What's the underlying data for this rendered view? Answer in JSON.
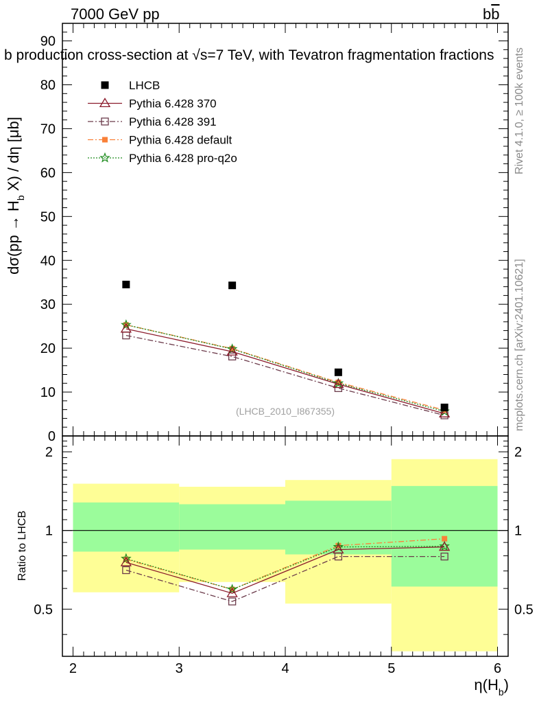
{
  "header": {
    "left": "7000 GeV pp",
    "right_main": "b",
    "right_bar": "b"
  },
  "side_labels": {
    "rivet": "Rivet 4.1.0, ≥ 100k events",
    "mcplots": "mcplots.cern.ch [arXiv:2401.10621]"
  },
  "title": "b production cross-section at √s=7 TeV, with Tevatron fragmentation fractions",
  "watermark": "(LHCB_2010_I867355)",
  "legend": [
    {
      "key": "lhcb",
      "label": "LHCB"
    },
    {
      "key": "p370",
      "label": "Pythia 6.428 370"
    },
    {
      "key": "p391",
      "label": "Pythia 6.428 391"
    },
    {
      "key": "pdef",
      "label": "Pythia 6.428 default"
    },
    {
      "key": "pq2o",
      "label": "Pythia 6.428 pro-q2o"
    }
  ],
  "colors": {
    "lhcb": "#000000",
    "p370": "#8b1a2b",
    "p391": "#6b3a4a",
    "pdef": "#f98038",
    "pq2o": "#1e8c1e",
    "band_inner": "#9bfc9b",
    "band_outer": "#fefe96"
  },
  "chart_data": [
    {
      "type": "line",
      "panel": "main",
      "ylabel_parts": {
        "pre": "dσ(pp → H",
        "sub": "b",
        "post": " X) / dη [μb]"
      },
      "ylim": [
        0,
        94
      ],
      "yticks": [
        0,
        10,
        20,
        30,
        40,
        50,
        60,
        70,
        80,
        90
      ],
      "xlim": [
        1.9,
        6.1
      ],
      "x": [
        2.5,
        3.5,
        4.5,
        5.5
      ],
      "series": [
        {
          "key": "lhcb",
          "name": "LHCB",
          "marker": "square-filled",
          "values": [
            34.5,
            34.3,
            14.5,
            6.5
          ]
        },
        {
          "key": "p370",
          "name": "Pythia 6.428 370",
          "marker": "triangle-open",
          "style": "solid",
          "values": [
            24.4,
            19.2,
            11.8,
            5.1
          ]
        },
        {
          "key": "p391",
          "name": "Pythia 6.428 391",
          "marker": "square-open",
          "style": "dashdot",
          "values": [
            22.9,
            18.1,
            10.9,
            4.7
          ]
        },
        {
          "key": "pdef",
          "name": "Pythia 6.428 default",
          "marker": "square-filled-small",
          "style": "dashdot",
          "values": [
            25.3,
            19.9,
            12.2,
            5.9
          ]
        },
        {
          "key": "pq2o",
          "name": "Pythia 6.428 pro-q2o",
          "marker": "star",
          "style": "dotted",
          "values": [
            25.3,
            19.8,
            12.0,
            5.6
          ]
        }
      ]
    },
    {
      "type": "line",
      "panel": "ratio",
      "ylabel": "Ratio to LHCB",
      "xlabel_parts": {
        "pre": "η(H",
        "sub": "b",
        "post": ")"
      },
      "ylim": [
        0.33,
        2.3
      ],
      "yticks": [
        0.5,
        1,
        2
      ],
      "yticklabels": [
        "0.5",
        "1",
        "2"
      ],
      "xticks": [
        2,
        3,
        4,
        5,
        6
      ],
      "xticklabels": [
        "2",
        "3",
        "4",
        "5",
        "6"
      ],
      "bins": [
        [
          2,
          3
        ],
        [
          3,
          4
        ],
        [
          4,
          5
        ],
        [
          5,
          6
        ]
      ],
      "band_inner": [
        [
          0.83,
          1.28
        ],
        [
          0.845,
          1.26
        ],
        [
          0.81,
          1.3
        ],
        [
          0.61,
          1.48
        ]
      ],
      "band_outer": [
        [
          0.58,
          1.51
        ],
        [
          0.635,
          1.47
        ],
        [
          0.525,
          1.56
        ],
        [
          0.345,
          1.875
        ]
      ],
      "x": [
        2.5,
        3.5,
        4.5,
        5.5
      ],
      "series": [
        {
          "key": "p370",
          "values": [
            0.755,
            0.575,
            0.845,
            0.865
          ]
        },
        {
          "key": "p391",
          "values": [
            0.705,
            0.535,
            0.795,
            0.795
          ]
        },
        {
          "key": "pdef",
          "values": [
            0.775,
            0.595,
            0.875,
            0.93
          ]
        },
        {
          "key": "pq2o",
          "values": [
            0.78,
            0.595,
            0.865,
            0.87
          ]
        }
      ]
    }
  ]
}
